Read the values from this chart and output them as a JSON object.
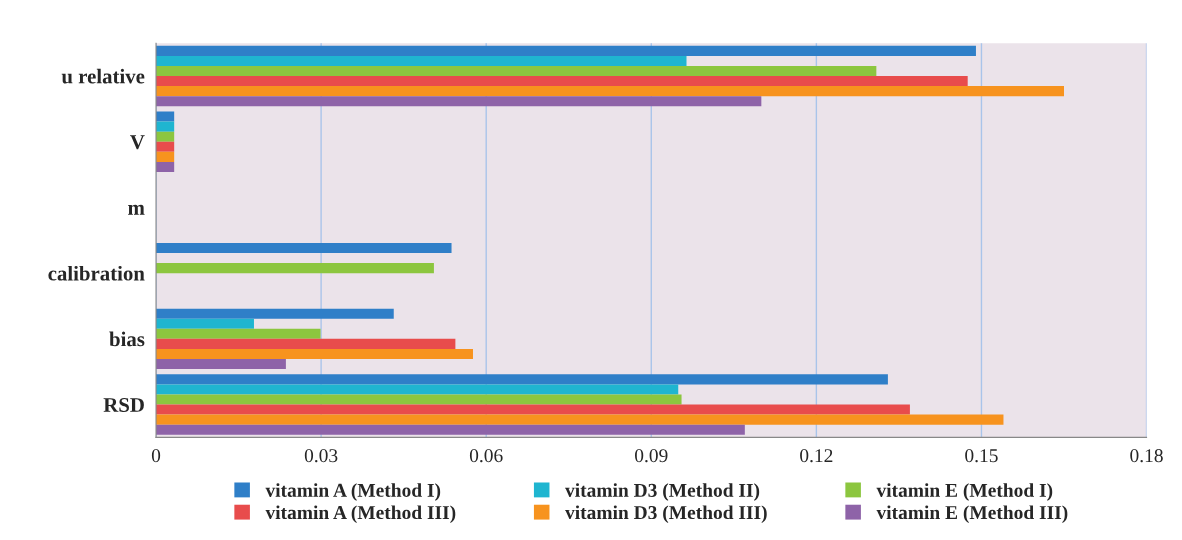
{
  "chart_data": {
    "type": "bar",
    "orientation": "horizontal",
    "categories": [
      "u relative",
      "V",
      "m",
      "calibration",
      "bias",
      "RSD"
    ],
    "series": [
      {
        "name": "vitamin A (Method I)",
        "color": "#2f7fc8",
        "values": [
          0.149,
          0.0033,
          0,
          0.0537,
          0.0432,
          0.133
        ]
      },
      {
        "name": "vitamin D3 (Method II)",
        "color": "#1fb5d0",
        "values": [
          0.0964,
          0.0033,
          0,
          0,
          0.0178,
          0.0949
        ]
      },
      {
        "name": "vitamin E (Method I)",
        "color": "#8cc63f",
        "values": [
          0.1309,
          0.0033,
          0,
          0.0505,
          0.0299,
          0.0955
        ]
      },
      {
        "name": "vitamin A (Method III)",
        "color": "#e84c4c",
        "values": [
          0.1475,
          0.0033,
          0,
          0,
          0.0544,
          0.137
        ]
      },
      {
        "name": "vitamin D3 (Method III)",
        "color": "#f7931e",
        "values": [
          0.165,
          0.0033,
          0,
          0,
          0.0576,
          0.154
        ]
      },
      {
        "name": "vitamin E (Method III)",
        "color": "#8e63a8",
        "values": [
          0.11,
          0.0033,
          0,
          0,
          0.0236,
          0.107
        ]
      }
    ],
    "xlim": [
      0,
      0.18
    ],
    "xticks": [
      0,
      0.03,
      0.06,
      0.09,
      0.12,
      0.15,
      0.18
    ],
    "grid": "x",
    "legend": "bottom"
  }
}
